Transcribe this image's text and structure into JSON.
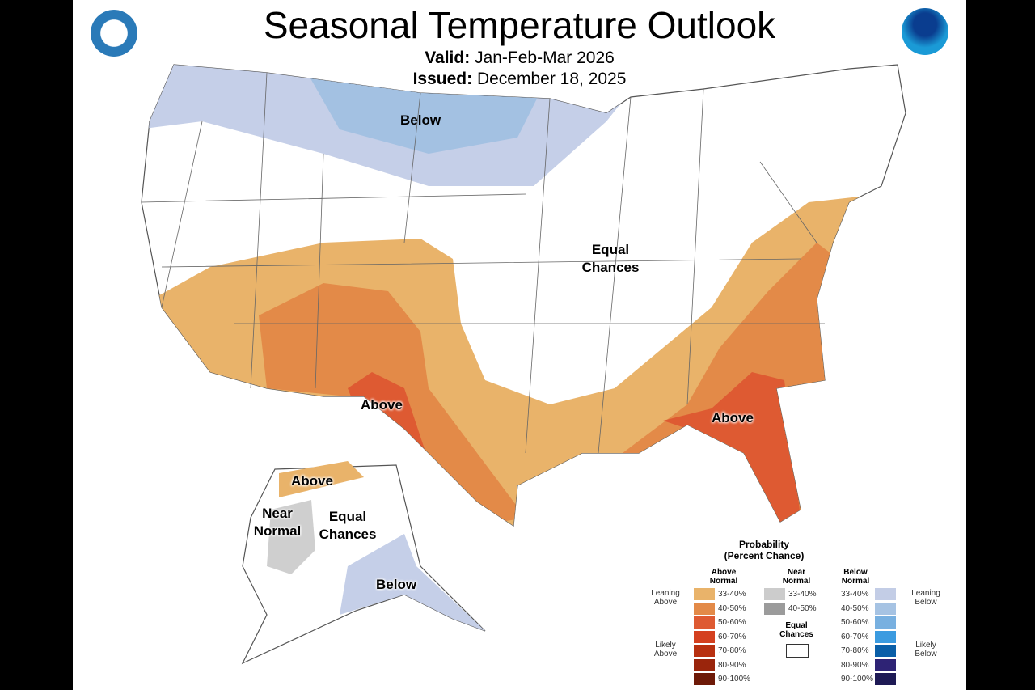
{
  "header": {
    "title": "Seasonal Temperature Outlook",
    "valid_label": "Valid:",
    "valid_value": "Jan-Feb-Mar 2026",
    "issued_label": "Issued:",
    "issued_value": "December 18, 2025"
  },
  "logos": {
    "left": "Department of Commerce seal",
    "right": "NOAA"
  },
  "map_labels": {
    "below_conus": "Below",
    "equal_chances_conus": "Equal Chances",
    "above_sw": "Above",
    "above_se": "Above",
    "above_ak": "Above",
    "near_normal_ak": "Near Normal",
    "equal_chances_ak": "Equal Chances",
    "below_ak": "Below"
  },
  "colors": {
    "above_33_40": "#e9b36a",
    "above_40_50": "#e38a48",
    "above_50_60": "#de5a32",
    "below_33_40": "#c5cfe8",
    "below_40_50": "#a3c1e2",
    "near_33_40": "#cfcfcf"
  },
  "legend": {
    "title": "Probability",
    "subtitle": "(Percent Chance)",
    "above": {
      "header": "Above Normal",
      "leaning": "Leaning Above",
      "likely": "Likely Above",
      "bins": [
        {
          "range": "33-40%",
          "color": "#e9b36a"
        },
        {
          "range": "40-50%",
          "color": "#e38a48"
        },
        {
          "range": "50-60%",
          "color": "#de5a32"
        },
        {
          "range": "60-70%",
          "color": "#d4401f"
        },
        {
          "range": "70-80%",
          "color": "#b83010"
        },
        {
          "range": "80-90%",
          "color": "#9a250c"
        },
        {
          "range": "90-100%",
          "color": "#6e1a08"
        }
      ]
    },
    "near": {
      "header": "Near Normal",
      "bins": [
        {
          "range": "33-40%",
          "color": "#cccccc"
        },
        {
          "range": "40-50%",
          "color": "#9b9b9b"
        }
      ]
    },
    "equal": "Equal Chances",
    "below": {
      "header": "Below Normal",
      "leaning": "Leaning Below",
      "likely": "Likely Below",
      "bins": [
        {
          "range": "33-40%",
          "color": "#c3cde6"
        },
        {
          "range": "40-50%",
          "color": "#a6c3e3"
        },
        {
          "range": "50-60%",
          "color": "#78b0e0"
        },
        {
          "range": "60-70%",
          "color": "#3b9be0"
        },
        {
          "range": "70-80%",
          "color": "#0a5fa8"
        },
        {
          "range": "80-90%",
          "color": "#2e2375"
        },
        {
          "range": "90-100%",
          "color": "#1e1a55"
        }
      ]
    }
  }
}
